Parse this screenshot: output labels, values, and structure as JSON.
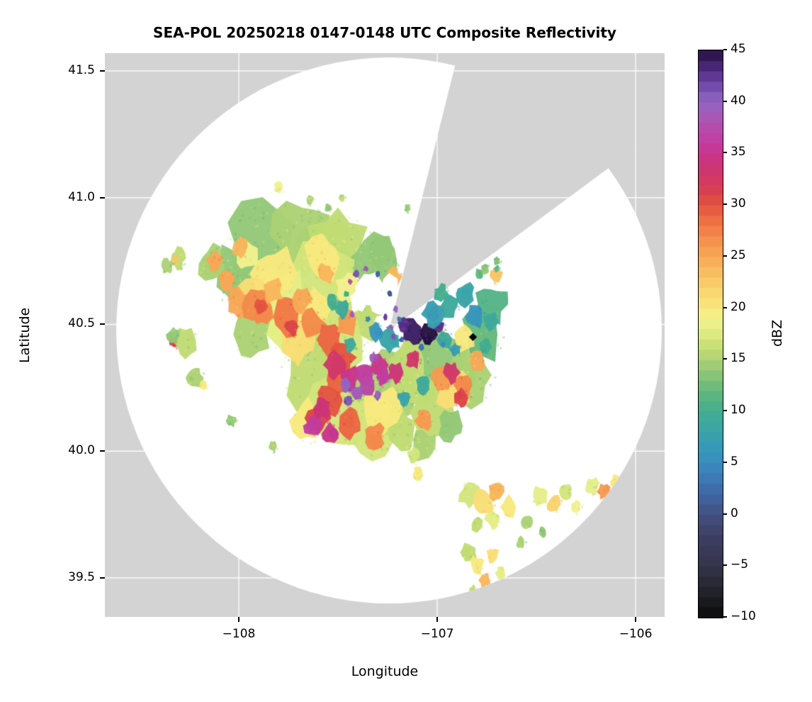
{
  "chart_data": {
    "type": "heatmap",
    "title": "SEA-POL 20250218 0147-0148 UTC Composite Reflectivity",
    "xlabel": "Longitude",
    "ylabel": "Latitude",
    "axes": {
      "lon_range": [
        -108.675,
        -105.854
      ],
      "lat_range": [
        39.346,
        41.57
      ],
      "x_ticks": [
        {
          "v": -108,
          "label": "−108"
        },
        {
          "v": -107,
          "label": "−107"
        },
        {
          "v": -106,
          "label": "−106"
        }
      ],
      "y_ticks": [
        {
          "v": 41.5,
          "label": "41.5"
        },
        {
          "v": 41.0,
          "label": "41.0"
        },
        {
          "v": 40.5,
          "label": "40.5"
        },
        {
          "v": 40.0,
          "label": "40.0"
        },
        {
          "v": 39.5,
          "label": "39.5"
        }
      ],
      "grid": true
    },
    "colors": {
      "background_outside": "#d3d3d3",
      "coverage_fill": "#ffffff",
      "gridline": "#ffffff",
      "marker": "#000000"
    },
    "radar": {
      "center_lon": -107.243,
      "center_lat": 40.476,
      "radius_deg_lat": 1.077,
      "blocked_sector_azimuth_deg": [
        14,
        54
      ]
    },
    "site_marker": {
      "lon": -106.82,
      "lat": 40.45,
      "symbol": "diamond"
    },
    "colorbar": {
      "label": "dBZ",
      "min": -10,
      "max": 45,
      "ticks": [
        {
          "v": 45,
          "label": "45"
        },
        {
          "v": 40,
          "label": "40"
        },
        {
          "v": 35,
          "label": "35"
        },
        {
          "v": 30,
          "label": "30"
        },
        {
          "v": 25,
          "label": "25"
        },
        {
          "v": 20,
          "label": "20"
        },
        {
          "v": 15,
          "label": "15"
        },
        {
          "v": 10,
          "label": "10"
        },
        {
          "v": 5,
          "label": "5"
        },
        {
          "v": 0,
          "label": "0"
        },
        {
          "v": -5,
          "label": "−5"
        },
        {
          "v": -10,
          "label": "−10"
        }
      ],
      "stops": [
        [
          -10,
          "#0c0c0c"
        ],
        [
          -7,
          "#262630"
        ],
        [
          -5,
          "#34344a"
        ],
        [
          -2,
          "#3e3e63"
        ],
        [
          0,
          "#44517f"
        ],
        [
          2,
          "#3f66a5"
        ],
        [
          4,
          "#3b7fba"
        ],
        [
          6,
          "#3795bd"
        ],
        [
          8,
          "#38a4a8"
        ],
        [
          10,
          "#42ad90"
        ],
        [
          12,
          "#63b87b"
        ],
        [
          14,
          "#93c877"
        ],
        [
          15,
          "#abd173"
        ],
        [
          16,
          "#c0dc72"
        ],
        [
          18,
          "#e4ee86"
        ],
        [
          19,
          "#f1f18e"
        ],
        [
          20,
          "#f8e97e"
        ],
        [
          22,
          "#f9d26c"
        ],
        [
          24,
          "#f8b65c"
        ],
        [
          26,
          "#f69a50"
        ],
        [
          28,
          "#f07846"
        ],
        [
          30,
          "#e3543f"
        ],
        [
          31,
          "#db4449"
        ],
        [
          32,
          "#d53a5c"
        ],
        [
          34,
          "#cc3478"
        ],
        [
          35,
          "#c9348e"
        ],
        [
          36,
          "#c23b9e"
        ],
        [
          38,
          "#b052b0"
        ],
        [
          40,
          "#9166c2"
        ],
        [
          41,
          "#7d55b5"
        ],
        [
          42,
          "#68419f"
        ],
        [
          43,
          "#532f86"
        ],
        [
          44,
          "#3b1d63"
        ],
        [
          45,
          "#251040"
        ]
      ]
    },
    "cells": [
      [
        -107.88,
        40.8,
        0.17,
        14
      ],
      [
        -107.68,
        40.85,
        0.14,
        15
      ],
      [
        -107.5,
        40.8,
        0.14,
        16
      ],
      [
        -107.32,
        40.74,
        0.12,
        14
      ],
      [
        -108.02,
        40.7,
        0.11,
        14
      ],
      [
        -108.13,
        40.74,
        0.07,
        15
      ],
      [
        -107.58,
        40.66,
        0.16,
        17
      ],
      [
        -107.78,
        40.56,
        0.15,
        18
      ],
      [
        -107.4,
        40.56,
        0.12,
        16
      ],
      [
        -107.94,
        40.46,
        0.09,
        15
      ],
      [
        -107.52,
        40.44,
        0.15,
        17
      ],
      [
        -107.62,
        40.3,
        0.16,
        16
      ],
      [
        -107.48,
        40.18,
        0.15,
        17
      ],
      [
        -107.28,
        40.24,
        0.15,
        15
      ],
      [
        -107.12,
        40.3,
        0.13,
        16
      ],
      [
        -106.97,
        40.36,
        0.12,
        14
      ],
      [
        -106.83,
        40.3,
        0.11,
        15
      ],
      [
        -107.02,
        40.16,
        0.11,
        16
      ],
      [
        -107.33,
        40.1,
        0.12,
        17
      ],
      [
        -106.77,
        40.46,
        0.1,
        12
      ],
      [
        -106.73,
        40.58,
        0.08,
        11
      ],
      [
        -107.18,
        40.08,
        0.08,
        16
      ],
      [
        -107.07,
        40.02,
        0.06,
        15
      ],
      [
        -106.93,
        40.1,
        0.06,
        14
      ],
      [
        -107.82,
        40.7,
        0.1,
        20
      ],
      [
        -107.58,
        40.76,
        0.09,
        20
      ],
      [
        -107.92,
        40.6,
        0.08,
        21
      ],
      [
        -107.7,
        40.44,
        0.09,
        21
      ],
      [
        -107.28,
        40.16,
        0.09,
        20
      ],
      [
        -106.92,
        40.24,
        0.08,
        21
      ],
      [
        -107.62,
        40.56,
        0.07,
        20
      ],
      [
        -107.45,
        40.64,
        0.06,
        19
      ],
      [
        -107.65,
        40.12,
        0.08,
        20
      ],
      [
        -106.86,
        40.44,
        0.05,
        20
      ],
      [
        -107.96,
        40.77,
        0.05,
        19
      ],
      [
        -108.0,
        40.58,
        0.06,
        25
      ],
      [
        -107.9,
        40.57,
        0.07,
        27
      ],
      [
        -107.76,
        40.53,
        0.07,
        28
      ],
      [
        -107.63,
        40.5,
        0.06,
        27
      ],
      [
        -107.55,
        40.44,
        0.06,
        29
      ],
      [
        -107.48,
        40.37,
        0.06,
        30
      ],
      [
        -107.5,
        40.28,
        0.06,
        29
      ],
      [
        -107.55,
        40.2,
        0.06,
        30
      ],
      [
        -107.6,
        40.13,
        0.055,
        31
      ],
      [
        -107.44,
        40.11,
        0.06,
        29
      ],
      [
        -107.32,
        40.06,
        0.05,
        27
      ],
      [
        -107.68,
        40.6,
        0.05,
        25
      ],
      [
        -107.83,
        40.63,
        0.05,
        24
      ],
      [
        -108.06,
        40.67,
        0.04,
        25
      ],
      [
        -108.12,
        40.75,
        0.04,
        25
      ],
      [
        -107.99,
        40.8,
        0.04,
        24
      ],
      [
        -107.56,
        40.7,
        0.04,
        24
      ],
      [
        -107.45,
        40.5,
        0.05,
        26
      ],
      [
        -106.97,
        40.29,
        0.05,
        26
      ],
      [
        -106.87,
        40.26,
        0.05,
        27
      ],
      [
        -106.8,
        40.36,
        0.04,
        25
      ],
      [
        -107.07,
        40.12,
        0.04,
        26
      ],
      [
        -107.22,
        40.69,
        0.035,
        24
      ],
      [
        -106.7,
        40.69,
        0.03,
        23
      ],
      [
        -107.52,
        40.34,
        0.05,
        33
      ],
      [
        -107.44,
        40.29,
        0.045,
        35
      ],
      [
        -107.37,
        40.31,
        0.045,
        36
      ],
      [
        -107.29,
        40.34,
        0.04,
        35
      ],
      [
        -107.21,
        40.31,
        0.038,
        34
      ],
      [
        -107.58,
        40.17,
        0.045,
        34
      ],
      [
        -107.62,
        40.1,
        0.045,
        36
      ],
      [
        -107.54,
        40.07,
        0.04,
        35
      ],
      [
        -107.12,
        40.36,
        0.035,
        33
      ],
      [
        -106.93,
        40.31,
        0.04,
        33
      ],
      [
        -106.88,
        40.21,
        0.035,
        31
      ],
      [
        -107.73,
        40.49,
        0.035,
        31
      ],
      [
        -107.89,
        40.57,
        0.03,
        30
      ],
      [
        -107.35,
        40.26,
        0.04,
        37
      ],
      [
        -107.27,
        40.29,
        0.032,
        36
      ],
      [
        -108.33,
        40.43,
        0.022,
        31
      ],
      [
        -107.4,
        40.23,
        0.028,
        39
      ],
      [
        -107.46,
        40.26,
        0.026,
        40
      ],
      [
        -107.32,
        40.37,
        0.02,
        39
      ],
      [
        -107.24,
        40.48,
        0.018,
        40
      ],
      [
        -107.45,
        40.2,
        0.02,
        41
      ],
      [
        -107.3,
        40.22,
        0.02,
        40
      ],
      [
        -107.12,
        40.47,
        0.05,
        44
      ],
      [
        -107.04,
        40.46,
        0.042,
        45
      ],
      [
        -107.17,
        40.5,
        0.028,
        43
      ],
      [
        -106.99,
        40.49,
        0.025,
        43
      ],
      [
        -107.24,
        40.44,
        0.045,
        8
      ],
      [
        -107.31,
        40.47,
        0.035,
        6
      ],
      [
        -107.02,
        40.54,
        0.05,
        7
      ],
      [
        -106.94,
        40.57,
        0.045,
        9
      ],
      [
        -106.86,
        40.62,
        0.045,
        8
      ],
      [
        -106.81,
        40.53,
        0.045,
        6
      ],
      [
        -106.73,
        40.51,
        0.035,
        9
      ],
      [
        -106.98,
        40.62,
        0.035,
        10
      ],
      [
        -106.96,
        40.44,
        0.035,
        9
      ],
      [
        -107.48,
        40.56,
        0.035,
        9
      ],
      [
        -107.53,
        40.59,
        0.03,
        10
      ],
      [
        -107.07,
        40.26,
        0.035,
        9
      ],
      [
        -107.17,
        40.21,
        0.03,
        8
      ],
      [
        -106.76,
        40.41,
        0.03,
        10
      ],
      [
        -106.91,
        40.4,
        0.025,
        7
      ],
      [
        -107.44,
        40.42,
        0.03,
        9
      ],
      [
        -106.79,
        40.7,
        0.022,
        12
      ],
      [
        -106.76,
        40.72,
        0.02,
        14
      ],
      [
        -106.7,
        40.75,
        0.016,
        13
      ],
      [
        -106.7,
        40.72,
        0.014,
        12
      ],
      [
        -107.8,
        41.04,
        0.022,
        19
      ],
      [
        -107.64,
        40.99,
        0.018,
        15
      ],
      [
        -107.55,
        40.96,
        0.016,
        14
      ],
      [
        -107.48,
        41.0,
        0.014,
        16
      ],
      [
        -107.15,
        40.96,
        0.015,
        14
      ],
      [
        -108.31,
        40.76,
        0.04,
        16
      ],
      [
        -108.36,
        40.73,
        0.03,
        15
      ],
      [
        -108.32,
        40.755,
        0.015,
        23
      ],
      [
        -108.27,
        40.43,
        0.055,
        16
      ],
      [
        -108.33,
        40.46,
        0.03,
        14
      ],
      [
        -108.22,
        40.29,
        0.04,
        15
      ],
      [
        -108.18,
        40.26,
        0.018,
        20
      ],
      [
        -108.04,
        40.12,
        0.025,
        14
      ],
      [
        -107.83,
        40.02,
        0.02,
        15
      ],
      [
        -107.12,
        39.98,
        0.03,
        17
      ],
      [
        -107.1,
        39.91,
        0.025,
        20
      ],
      [
        -106.84,
        39.83,
        0.05,
        17
      ],
      [
        -106.76,
        39.8,
        0.05,
        21
      ],
      [
        -106.7,
        39.84,
        0.04,
        24
      ],
      [
        -106.64,
        39.78,
        0.04,
        20
      ],
      [
        -106.72,
        39.73,
        0.035,
        18
      ],
      [
        -106.8,
        39.71,
        0.03,
        16
      ],
      [
        -106.55,
        39.72,
        0.03,
        15
      ],
      [
        -106.48,
        39.82,
        0.04,
        18
      ],
      [
        -106.41,
        39.79,
        0.035,
        22
      ],
      [
        -106.35,
        39.84,
        0.03,
        17
      ],
      [
        -106.3,
        39.78,
        0.025,
        19
      ],
      [
        -106.22,
        39.86,
        0.035,
        18
      ],
      [
        -106.16,
        39.84,
        0.03,
        26
      ],
      [
        -106.1,
        39.88,
        0.025,
        20
      ],
      [
        -106.06,
        39.8,
        0.02,
        22
      ],
      [
        -106.84,
        39.6,
        0.04,
        16
      ],
      [
        -106.8,
        39.55,
        0.035,
        20
      ],
      [
        -106.76,
        39.49,
        0.03,
        24
      ],
      [
        -106.72,
        39.59,
        0.03,
        21
      ],
      [
        -106.68,
        39.52,
        0.025,
        18
      ],
      [
        -106.82,
        39.45,
        0.02,
        16
      ],
      [
        -106.58,
        39.64,
        0.022,
        15
      ],
      [
        -106.47,
        39.68,
        0.02,
        14
      ]
    ],
    "holes": [
      [
        -107.34,
        40.65,
        0.065
      ],
      [
        -107.28,
        40.58,
        0.05
      ],
      [
        -107.4,
        40.59,
        0.042
      ],
      [
        -107.24,
        40.66,
        0.04
      ]
    ],
    "overlay_cells": [
      [
        -107.41,
        40.7,
        0.014,
        41
      ],
      [
        -107.36,
        40.72,
        0.012,
        39
      ],
      [
        -107.3,
        40.7,
        0.012,
        2
      ],
      [
        -107.24,
        40.62,
        0.012,
        1
      ],
      [
        -107.21,
        40.56,
        0.012,
        40
      ],
      [
        -107.26,
        40.53,
        0.012,
        42
      ],
      [
        -107.35,
        40.52,
        0.012,
        5
      ],
      [
        -107.43,
        40.54,
        0.012,
        39
      ],
      [
        -107.46,
        40.62,
        0.013,
        10
      ],
      [
        -107.44,
        40.67,
        0.012,
        38
      ],
      [
        -107.19,
        40.52,
        0.011,
        3
      ],
      [
        -107.22,
        40.45,
        0.012,
        41
      ],
      [
        -107.08,
        40.41,
        0.013,
        3
      ],
      [
        -106.97,
        40.42,
        0.012,
        5
      ],
      [
        -107.18,
        40.44,
        0.012,
        2
      ]
    ]
  }
}
